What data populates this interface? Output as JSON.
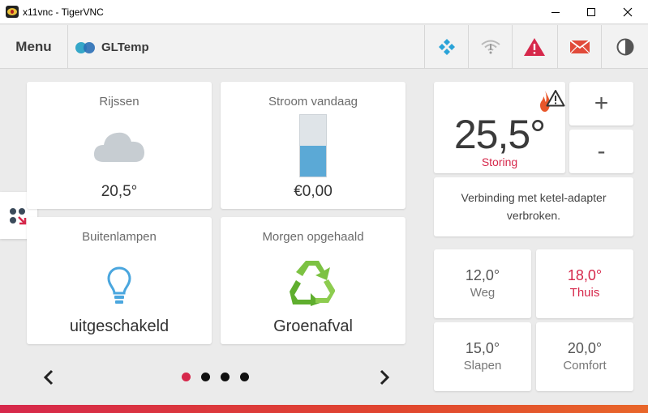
{
  "window": {
    "title": "x11vnc - TigerVNC"
  },
  "header": {
    "menu_label": "Menu",
    "brand_name": "GLTemp"
  },
  "header_icons": [
    "kodi-icon",
    "wifi-icon",
    "warning-icon",
    "mail-icon",
    "theme-icon"
  ],
  "tiles": {
    "weather": {
      "title": "Rijssen",
      "value": "20,5°",
      "icon": "cloud-icon"
    },
    "power": {
      "title": "Stroom vandaag",
      "value": "€0,00",
      "fill_fraction": 0.5,
      "icon": "power-bar"
    },
    "lights": {
      "title": "Buitenlampen",
      "value": "uitgeschakeld",
      "icon": "lightbulb-icon"
    },
    "waste": {
      "title": "Morgen opgehaald",
      "value": "Groenafval",
      "icon": "recycle-icon"
    }
  },
  "pagination": {
    "pages": 4,
    "active": 0
  },
  "thermostat": {
    "temperature": "25,5°",
    "status": "Storing",
    "plus_label": "+",
    "minus_label": "-",
    "message": "Verbinding met ketel-adapter verbroken."
  },
  "presets": [
    {
      "temp": "12,0°",
      "name": "Weg",
      "active": false
    },
    {
      "temp": "18,0°",
      "name": "Thuis",
      "active": true
    },
    {
      "temp": "15,0°",
      "name": "Slapen",
      "active": false
    },
    {
      "temp": "20,0°",
      "name": "Comfort",
      "active": false
    }
  ],
  "colors": {
    "accent": "#d6284b",
    "kodi": "#2aa3d8",
    "power_fill": "#5ba9d6",
    "lightbulb": "#4aa6de",
    "recycle": "#6fbf2b"
  }
}
